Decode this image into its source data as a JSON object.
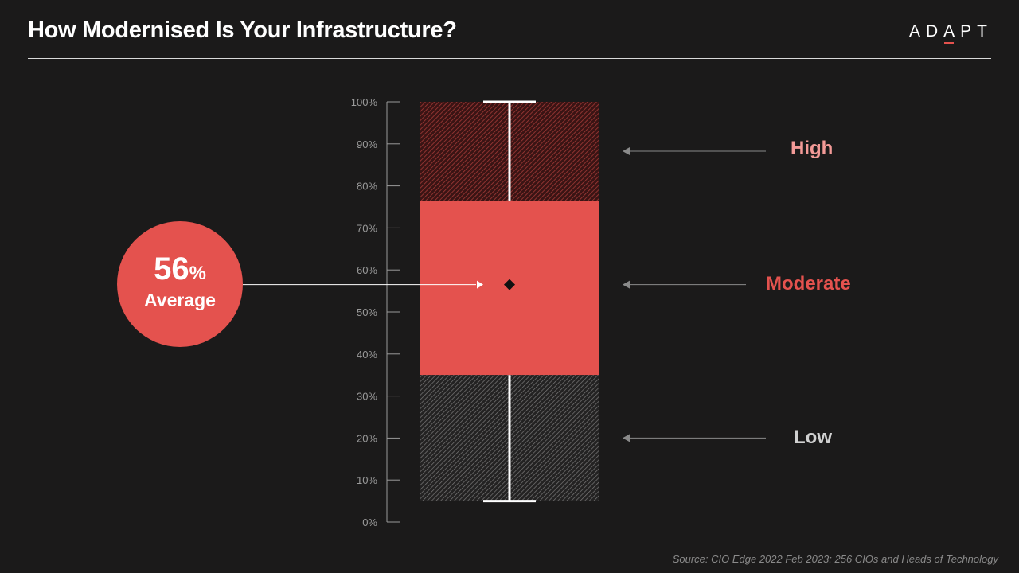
{
  "title": "How Modernised Is Your Infrastructure?",
  "logo": {
    "pre": "AD",
    "accent": "A",
    "post": "PT"
  },
  "average": {
    "number": "56",
    "unit": "%",
    "label": "Average"
  },
  "source": "Source: CIO Edge 2022 Feb 2023: 256 CIOs and Heads of Technology",
  "colors": {
    "accent": "#e4524e",
    "high": "#f39a97",
    "low": "#d0d0d0",
    "background": "#1b1a1a"
  },
  "chart_data": {
    "type": "box",
    "title": "",
    "xlabel": "",
    "ylabel": "",
    "ylim": [
      0,
      100
    ],
    "y_ticks": [
      "0%",
      "10%",
      "20%",
      "30%",
      "40%",
      "50%",
      "60%",
      "70%",
      "80%",
      "90%",
      "100%"
    ],
    "whisker_low": 5,
    "q1": 35,
    "q3": 76.5,
    "whisker_high": 100,
    "mean": 56.5,
    "segments": [
      {
        "name": "High",
        "from": 76.5,
        "to": 100
      },
      {
        "name": "Moderate",
        "from": 35,
        "to": 76.5
      },
      {
        "name": "Low",
        "from": 5,
        "to": 35
      }
    ],
    "annotations": [
      "High",
      "Moderate",
      "Low",
      "56% Average"
    ]
  }
}
